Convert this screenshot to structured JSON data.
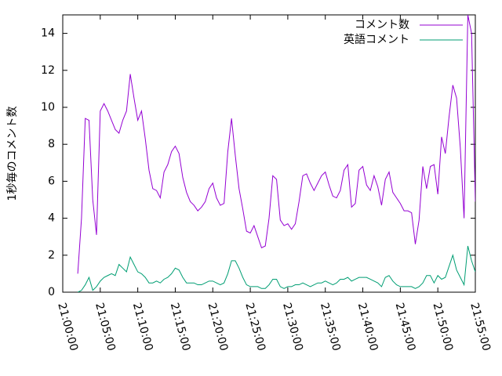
{
  "chart_data": {
    "type": "line",
    "ylabel": "1秒毎のコメント数",
    "x": [
      "21:02:00",
      "21:02:30",
      "21:03:00",
      "21:03:30",
      "21:04:00",
      "21:04:30",
      "21:05:00",
      "21:05:30",
      "21:06:00",
      "21:06:30",
      "21:07:00",
      "21:07:30",
      "21:08:00",
      "21:08:30",
      "21:09:00",
      "21:09:30",
      "21:10:00",
      "21:10:30",
      "21:11:00",
      "21:11:30",
      "21:12:00",
      "21:12:30",
      "21:13:00",
      "21:13:30",
      "21:14:00",
      "21:14:30",
      "21:15:00",
      "21:15:30",
      "21:16:00",
      "21:16:30",
      "21:17:00",
      "21:17:30",
      "21:18:00",
      "21:18:30",
      "21:19:00",
      "21:19:30",
      "21:20:00",
      "21:20:30",
      "21:21:00",
      "21:21:30",
      "21:22:00",
      "21:22:30",
      "21:23:00",
      "21:23:30",
      "21:24:00",
      "21:24:30",
      "21:25:00",
      "21:25:30",
      "21:26:00",
      "21:26:30",
      "21:27:00",
      "21:27:30",
      "21:28:00",
      "21:28:30",
      "21:29:00",
      "21:29:30",
      "21:30:00",
      "21:30:30",
      "21:31:00",
      "21:31:30",
      "21:32:00",
      "21:32:30",
      "21:33:00",
      "21:33:30",
      "21:34:00",
      "21:34:30",
      "21:35:00",
      "21:35:30",
      "21:36:00",
      "21:36:30",
      "21:37:00",
      "21:37:30",
      "21:38:00",
      "21:38:30",
      "21:39:00",
      "21:39:30",
      "21:40:00",
      "21:40:30",
      "21:41:00",
      "21:41:30",
      "21:42:00",
      "21:42:30",
      "21:43:00",
      "21:43:30",
      "21:44:00",
      "21:44:30",
      "21:45:00",
      "21:45:30",
      "21:46:00",
      "21:46:30",
      "21:47:00",
      "21:47:30",
      "21:48:00",
      "21:48:30",
      "21:49:00",
      "21:49:30",
      "21:50:00",
      "21:50:30",
      "21:51:00",
      "21:51:30",
      "21:52:00",
      "21:52:30",
      "21:53:00",
      "21:53:30",
      "21:54:00",
      "21:54:30",
      "21:55:00"
    ],
    "series": [
      {
        "name": "コメント数",
        "color": "#9400d3",
        "values": [
          1.0,
          4.0,
          9.4,
          9.3,
          5.0,
          3.1,
          9.8,
          10.2,
          9.8,
          9.3,
          8.8,
          8.6,
          9.3,
          9.8,
          11.8,
          10.5,
          9.3,
          9.8,
          8.3,
          6.6,
          5.6,
          5.5,
          5.1,
          6.5,
          6.9,
          7.6,
          7.9,
          7.5,
          6.2,
          5.4,
          4.9,
          4.7,
          4.4,
          4.6,
          4.9,
          5.6,
          5.9,
          5.1,
          4.7,
          4.8,
          7.6,
          9.4,
          7.4,
          5.6,
          4.5,
          3.3,
          3.2,
          3.6,
          3.0,
          2.4,
          2.5,
          4.0,
          6.3,
          6.1,
          3.9,
          3.6,
          3.7,
          3.4,
          3.7,
          4.9,
          6.3,
          6.4,
          5.9,
          5.5,
          5.9,
          6.3,
          6.5,
          5.8,
          5.2,
          5.1,
          5.5,
          6.6,
          6.9,
          4.6,
          4.8,
          6.6,
          6.8,
          5.8,
          5.5,
          6.3,
          5.7,
          4.7,
          6.1,
          6.5,
          5.4,
          5.1,
          4.8,
          4.4,
          4.4,
          4.3,
          2.6,
          3.9,
          6.8,
          5.6,
          6.8,
          6.9,
          5.3,
          8.4,
          7.5,
          9.5,
          11.2,
          10.5,
          7.8,
          4.0,
          15,
          14,
          4.9
        ]
      },
      {
        "name": "英語コメント",
        "color": "#009e73",
        "values": [
          0,
          0.1,
          0.4,
          0.8,
          0.1,
          0.3,
          0.6,
          0.8,
          0.9,
          1.0,
          0.9,
          1.5,
          1.3,
          1.1,
          1.9,
          1.5,
          1.1,
          1.0,
          0.8,
          0.5,
          0.5,
          0.6,
          0.5,
          0.7,
          0.8,
          1.0,
          1.3,
          1.2,
          0.8,
          0.5,
          0.5,
          0.5,
          0.4,
          0.4,
          0.5,
          0.6,
          0.6,
          0.5,
          0.4,
          0.5,
          1.0,
          1.7,
          1.7,
          1.3,
          0.8,
          0.4,
          0.3,
          0.3,
          0.3,
          0.2,
          0.2,
          0.4,
          0.7,
          0.7,
          0.3,
          0.2,
          0.3,
          0.3,
          0.4,
          0.4,
          0.5,
          0.4,
          0.3,
          0.4,
          0.5,
          0.5,
          0.6,
          0.5,
          0.4,
          0.5,
          0.7,
          0.7,
          0.8,
          0.6,
          0.7,
          0.8,
          0.8,
          0.8,
          0.7,
          0.6,
          0.5,
          0.3,
          0.8,
          0.9,
          0.6,
          0.4,
          0.3,
          0.3,
          0.3,
          0.3,
          0.2,
          0.3,
          0.5,
          0.9,
          0.9,
          0.5,
          0.9,
          0.7,
          0.8,
          1.4,
          2.0,
          1.2,
          0.8,
          0.4,
          2.5,
          1.7,
          1.1
        ]
      }
    ],
    "xlim": [
      "21:00:00",
      "21:55:00"
    ],
    "xticks": [
      "21:00:00",
      "21:05:00",
      "21:10:00",
      "21:15:00",
      "21:20:00",
      "21:25:00",
      "21:30:00",
      "21:35:00",
      "21:40:00",
      "21:45:00",
      "21:50:00",
      "21:55:00"
    ],
    "ylim": [
      0,
      15
    ],
    "yticks": [
      0,
      2,
      4,
      6,
      8,
      10,
      12,
      14
    ],
    "legend": "top-right"
  }
}
